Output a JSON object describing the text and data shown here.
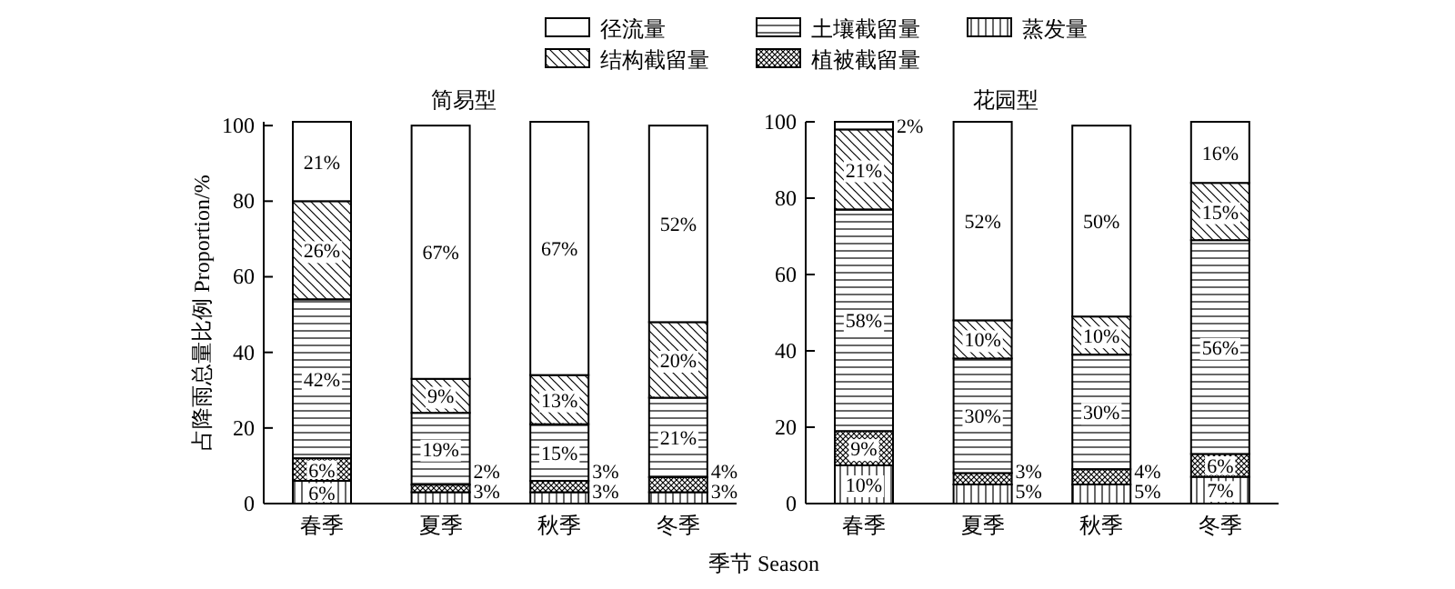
{
  "chart_data": [
    {
      "type": "bar",
      "stacked": true,
      "title": "简易型",
      "xlabel": "季节 Season",
      "ylabel": "占降雨总量比例 Proportion/%",
      "categories": [
        "春季",
        "夏季",
        "秋季",
        "冬季"
      ],
      "ylim": [
        0,
        101
      ],
      "yticks": [
        0,
        20,
        40,
        60,
        80,
        100
      ],
      "legend": "top",
      "series": [
        {
          "name": "蒸发量",
          "color": "#000000",
          "values": [
            6,
            3,
            3,
            3
          ],
          "value_labels": [
            "6%",
            "3%",
            "3%",
            "3%"
          ]
        },
        {
          "name": "植被截留量",
          "color": "#000000",
          "values": [
            6,
            2,
            3,
            4
          ],
          "value_labels": [
            "6%",
            "2%",
            "3%",
            "4%"
          ]
        },
        {
          "name": "土壤截留量",
          "color": "#000000",
          "values": [
            42,
            19,
            15,
            21
          ],
          "value_labels": [
            "42%",
            "19%",
            "15%",
            "21%"
          ]
        },
        {
          "name": "结构截留量",
          "color": "#000000",
          "values": [
            26,
            9,
            13,
            20
          ],
          "value_labels": [
            "26%",
            "9%",
            "13%",
            "20%"
          ]
        },
        {
          "name": "径流量",
          "color": "#ffffff",
          "values": [
            21,
            67,
            67,
            52
          ],
          "value_labels": [
            "21%",
            "67%",
            "67%",
            "52%"
          ]
        }
      ]
    },
    {
      "type": "bar",
      "stacked": true,
      "title": "花园型",
      "categories": [
        "春季",
        "夏季",
        "秋季",
        "冬季"
      ],
      "ylim": [
        0,
        100
      ],
      "yticks": [
        0,
        20,
        40,
        60,
        80,
        100
      ],
      "series": [
        {
          "color": "#000000",
          "values": [
            10,
            5,
            5,
            7
          ],
          "value_labels": [
            "10%",
            "5%",
            "5%",
            "7%"
          ]
        },
        {
          "color": "#000000",
          "values": [
            9,
            3,
            4,
            6
          ],
          "value_labels": [
            "9%",
            "3%",
            "4%",
            "6%"
          ]
        },
        {
          "color": "#000000",
          "values": [
            58,
            30,
            30,
            56
          ],
          "value_labels": [
            "58%",
            "30%",
            "30%",
            "56%"
          ]
        },
        {
          "color": "#000000",
          "values": [
            21,
            10,
            10,
            15
          ],
          "value_labels": [
            "21%",
            "10%",
            "10%",
            "15%"
          ]
        },
        {
          "color": "#ffffff",
          "values": [
            2,
            52,
            50,
            16
          ],
          "value_labels": [
            "2%",
            "52%",
            "50%",
            "16%"
          ]
        }
      ]
    }
  ]
}
